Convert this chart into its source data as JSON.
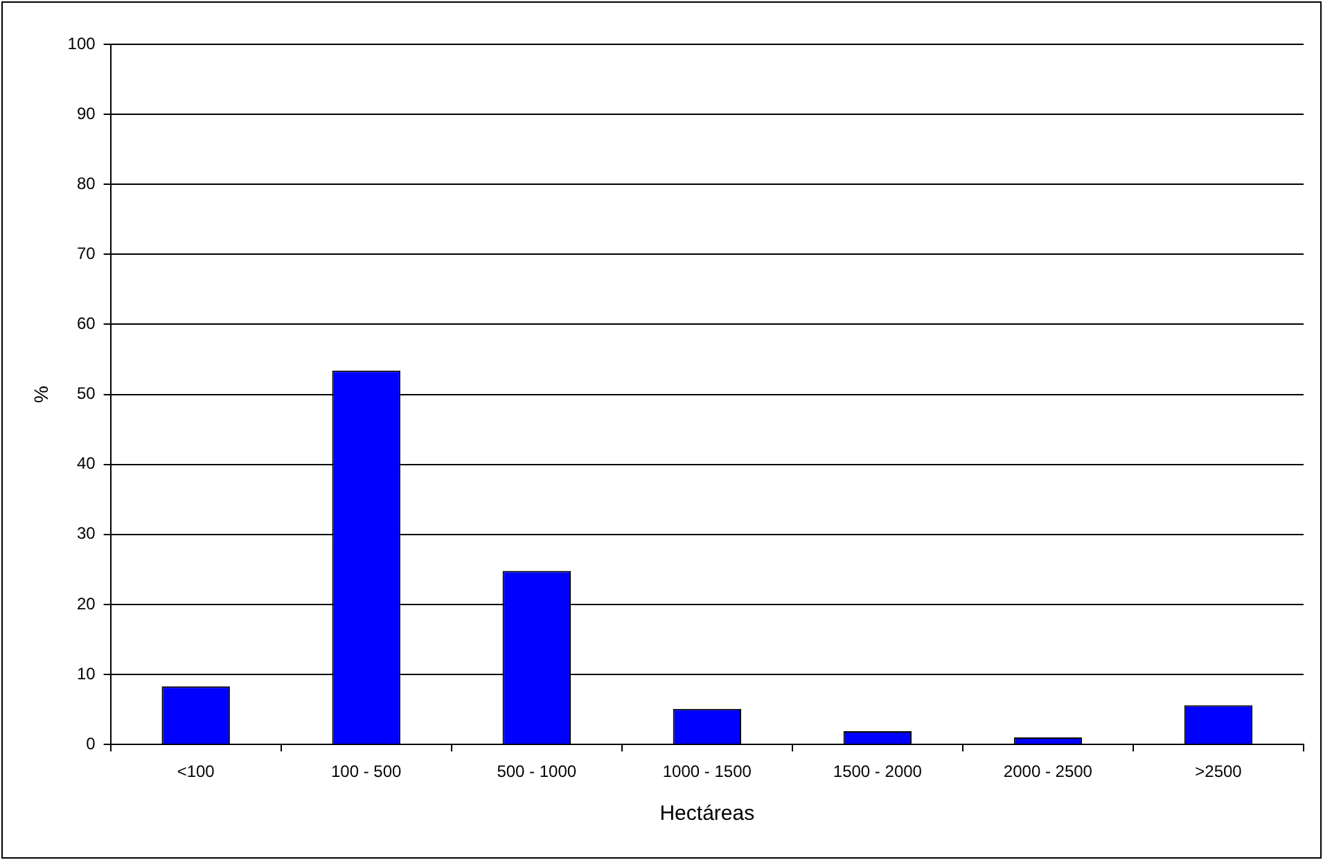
{
  "chart_data": {
    "type": "bar",
    "xlabel": "Hectáreas",
    "ylabel": "%",
    "categories": [
      "<100",
      "100 - 500",
      "500 - 1000",
      "1000 - 1500",
      "1500 - 2000",
      "2000 - 2500",
      ">2500"
    ],
    "values": [
      8.3,
      53.4,
      24.8,
      5.1,
      1.9,
      1.0,
      5.6
    ],
    "color": "#0000ff",
    "ylim": [
      0,
      100
    ],
    "yticks": [
      0,
      10,
      20,
      30,
      40,
      50,
      60,
      70,
      80,
      90,
      100
    ],
    "grid": "y",
    "legend": false
  }
}
